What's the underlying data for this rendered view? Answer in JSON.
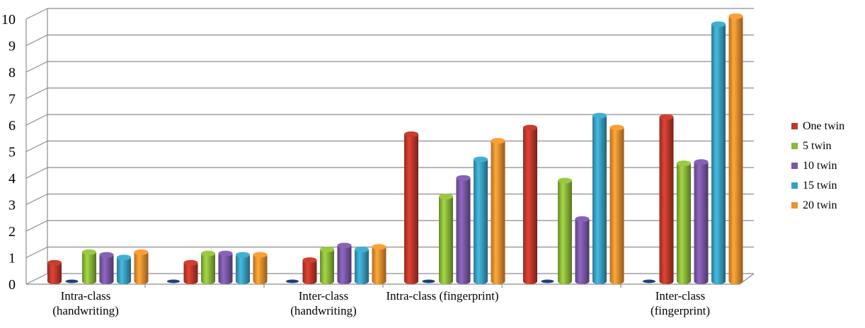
{
  "chart_data": {
    "type": "bar",
    "style": "3d-cylinder",
    "title": "",
    "xlabel": "",
    "ylabel": "",
    "ylim": [
      0,
      10
    ],
    "yticks": [
      0,
      1,
      2,
      3,
      4,
      5,
      6,
      7,
      8,
      9,
      10
    ],
    "grid": true,
    "legend_position": "right",
    "categories": [
      [
        "Intra-class",
        "(handwriting)"
      ],
      [
        ""
      ],
      [
        "Inter-class",
        "(handwriting)"
      ],
      [
        "Intra-class (fingerprint)"
      ],
      [
        ""
      ],
      [
        "Inter-class",
        "(fingerprint)"
      ]
    ],
    "series": [
      {
        "name": "One twin",
        "color": "#c0392b",
        "values": [
          0.0,
          0.7,
          0.8,
          0.0,
          0.0,
          6.2
        ]
      },
      {
        "name": "5 twin",
        "color": "#8cb83a",
        "values": [
          1.1,
          1.05,
          1.2,
          3.2,
          3.8,
          4.45
        ]
      },
      {
        "name": "10 twin",
        "color": "#7b58a6",
        "values": [
          1.0,
          1.05,
          1.35,
          3.9,
          2.35,
          4.5
        ]
      },
      {
        "name": "15 twin",
        "color": "#3a9fc0",
        "values": [
          0.9,
          1.0,
          1.2,
          4.6,
          6.25,
          9.7
        ]
      },
      {
        "name": "20 twin",
        "color": "#f0902f",
        "values": [
          1.1,
          1.0,
          1.3,
          5.3,
          5.8,
          10.0
        ]
      }
    ],
    "leading_values": [
      0.7,
      0.0,
      0.0,
      5.55,
      5.8,
      0.0
    ]
  }
}
